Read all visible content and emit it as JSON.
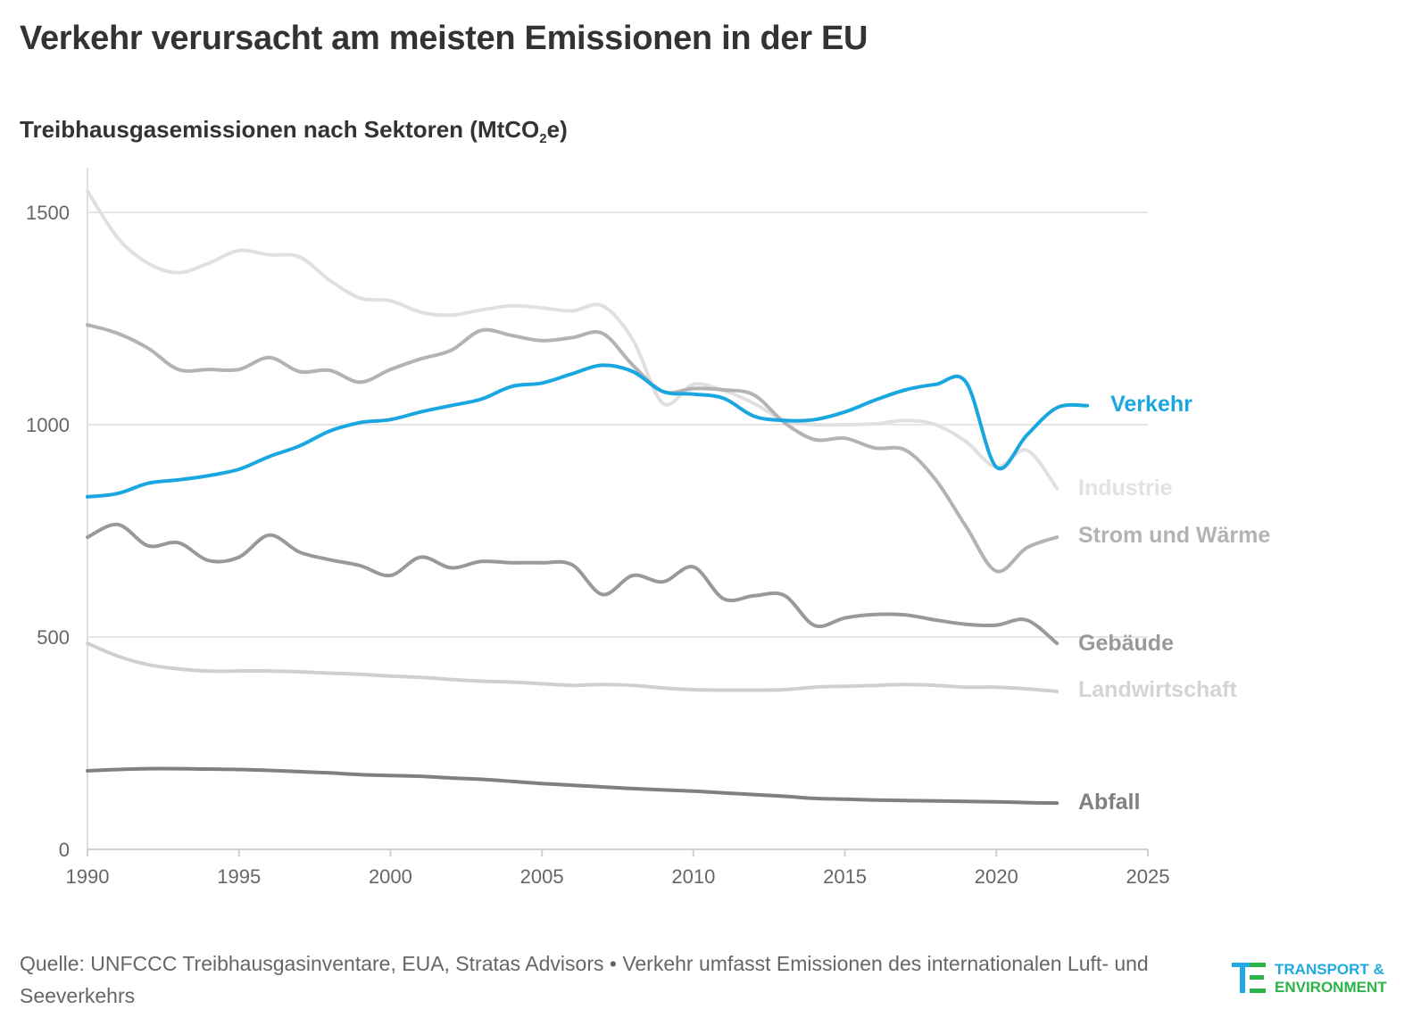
{
  "title": "Verkehr verursacht am meisten Emissionen in der EU",
  "subtitle": {
    "main": "Treibhausgasemissionen nach Sektoren (MtCO",
    "sub": "2",
    "tail": "e)"
  },
  "source": {
    "text": "Quelle: UNFCCC Treibhausgasinventare, EUA, Stratas Advisors • Verkehr umfasst Emissionen des internationalen Luft- und Seeverkehrs"
  },
  "logo": {
    "line1": "TRANSPORT &",
    "line2": "ENVIRONMENT",
    "icon": "te-logo-icon",
    "color_blue": "#1ea9e1",
    "color_green": "#2bb44a"
  },
  "chart_data": {
    "type": "line",
    "title": "Verkehr verursacht am meisten Emissionen in der EU",
    "subtitle": "Treibhausgasemissionen nach Sektoren (MtCO2e)",
    "xlabel": "",
    "ylabel": "",
    "xlim": [
      1990,
      2025
    ],
    "ylim": [
      0,
      1600
    ],
    "xticks": [
      1990,
      1995,
      2000,
      2005,
      2010,
      2015,
      2020,
      2025
    ],
    "yticks": [
      0,
      500,
      1000,
      1500
    ],
    "grid": "horizontal",
    "legend": "direct labels at line ends (right)",
    "series": [
      {
        "name": "Verkehr",
        "color": "#1aa7e0",
        "x": [
          1990,
          1991,
          1992,
          1993,
          1994,
          1995,
          1996,
          1997,
          1998,
          1999,
          2000,
          2001,
          2002,
          2003,
          2004,
          2005,
          2006,
          2007,
          2008,
          2009,
          2010,
          2011,
          2012,
          2013,
          2014,
          2015,
          2016,
          2017,
          2018,
          2019,
          2020,
          2021,
          2022,
          2023
        ],
        "values": [
          830,
          838,
          862,
          870,
          880,
          895,
          925,
          950,
          985,
          1005,
          1012,
          1030,
          1045,
          1060,
          1090,
          1098,
          1120,
          1140,
          1125,
          1078,
          1072,
          1062,
          1020,
          1010,
          1012,
          1030,
          1058,
          1082,
          1095,
          1100,
          900,
          975,
          1040,
          1045
        ]
      },
      {
        "name": "Industrie",
        "color": "#e0e0e0",
        "x": [
          1990,
          1991,
          1992,
          1993,
          1994,
          1995,
          1996,
          1997,
          1998,
          1999,
          2000,
          2001,
          2002,
          2003,
          2004,
          2005,
          2006,
          2007,
          2008,
          2009,
          2010,
          2011,
          2012,
          2013,
          2014,
          2015,
          2016,
          2017,
          2018,
          2019,
          2020,
          2021,
          2022
        ],
        "values": [
          1550,
          1440,
          1380,
          1358,
          1380,
          1410,
          1400,
          1395,
          1340,
          1298,
          1292,
          1265,
          1258,
          1270,
          1280,
          1275,
          1268,
          1280,
          1200,
          1050,
          1095,
          1080,
          1050,
          1010,
          1000,
          1000,
          1002,
          1010,
          1000,
          960,
          900,
          940,
          850
        ]
      },
      {
        "name": "Strom und Wärme",
        "color": "#b3b3b3",
        "x": [
          1990,
          1991,
          1992,
          1993,
          1994,
          1995,
          1996,
          1997,
          1998,
          1999,
          2000,
          2001,
          2002,
          2003,
          2004,
          2005,
          2006,
          2007,
          2008,
          2009,
          2010,
          2011,
          2012,
          2013,
          2014,
          2015,
          2016,
          2017,
          2018,
          2019,
          2020,
          2021,
          2022
        ],
        "values": [
          1235,
          1215,
          1180,
          1130,
          1130,
          1130,
          1158,
          1125,
          1128,
          1100,
          1130,
          1155,
          1175,
          1222,
          1210,
          1198,
          1205,
          1215,
          1140,
          1078,
          1085,
          1082,
          1070,
          1005,
          965,
          968,
          945,
          940,
          870,
          760,
          655,
          710,
          735
        ]
      },
      {
        "name": "Gebäude",
        "color": "#999999",
        "x": [
          1990,
          1991,
          1992,
          1993,
          1994,
          1995,
          1996,
          1997,
          1998,
          1999,
          2000,
          2001,
          2002,
          2003,
          2004,
          2005,
          2006,
          2007,
          2008,
          2009,
          2010,
          2011,
          2012,
          2013,
          2014,
          2015,
          2016,
          2017,
          2018,
          2019,
          2020,
          2021,
          2022
        ],
        "values": [
          735,
          765,
          715,
          722,
          680,
          688,
          740,
          700,
          682,
          668,
          645,
          688,
          663,
          678,
          675,
          675,
          670,
          600,
          645,
          630,
          665,
          590,
          597,
          598,
          527,
          545,
          553,
          552,
          540,
          530,
          528,
          540,
          485
        ]
      },
      {
        "name": "Landwirtschaft",
        "color": "#d0d0d0",
        "x": [
          1990,
          1991,
          1992,
          1993,
          1994,
          1995,
          1996,
          1997,
          1998,
          1999,
          2000,
          2001,
          2002,
          2003,
          2004,
          2005,
          2006,
          2007,
          2008,
          2009,
          2010,
          2011,
          2012,
          2013,
          2014,
          2015,
          2016,
          2017,
          2018,
          2019,
          2020,
          2021,
          2022
        ],
        "values": [
          485,
          455,
          435,
          425,
          420,
          420,
          420,
          418,
          415,
          412,
          408,
          405,
          400,
          396,
          394,
          390,
          386,
          388,
          386,
          380,
          376,
          375,
          375,
          376,
          382,
          384,
          386,
          388,
          386,
          382,
          382,
          378,
          372
        ]
      },
      {
        "name": "Abfall",
        "color": "#808080",
        "x": [
          1990,
          1991,
          1992,
          1993,
          1994,
          1995,
          1996,
          1997,
          1998,
          1999,
          2000,
          2001,
          2002,
          2003,
          2004,
          2005,
          2006,
          2007,
          2008,
          2009,
          2010,
          2011,
          2012,
          2013,
          2014,
          2015,
          2016,
          2017,
          2018,
          2019,
          2020,
          2021,
          2022
        ],
        "values": [
          185,
          188,
          190,
          190,
          189,
          188,
          186,
          183,
          180,
          176,
          174,
          172,
          168,
          165,
          160,
          155,
          151,
          147,
          143,
          140,
          137,
          133,
          129,
          125,
          120,
          118,
          116,
          115,
          114,
          113,
          112,
          110,
          109
        ]
      }
    ],
    "label_colors": {
      "Verkehr": "#1aa7e0",
      "Industrie": "#e2e2e2",
      "Strom und Wärme": "#b3b3b3",
      "Gebäude": "#999999",
      "Landwirtschaft": "#d4d4d4",
      "Abfall": "#808080"
    }
  }
}
